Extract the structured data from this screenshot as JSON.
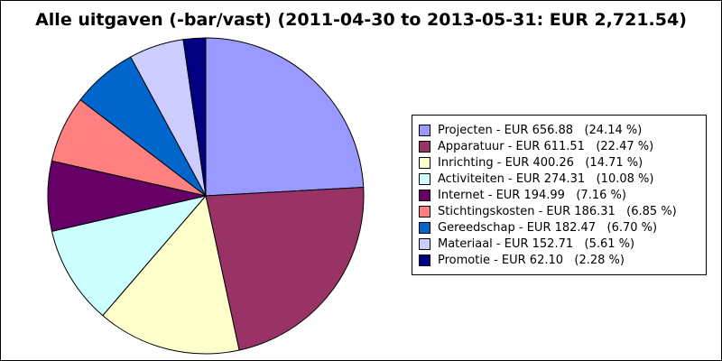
{
  "chart_data": {
    "type": "pie",
    "title": "Alle uitgaven (-bar/vast) (2011-04-30 to 2013-05-31: EUR 2,721.54)",
    "total": 2721.54,
    "currency": "EUR",
    "slices": [
      {
        "name": "Projecten",
        "value": 656.88,
        "percent": 24.14,
        "color": "#9999ff",
        "label": "Projecten - EUR 656.88   (24.14 %)"
      },
      {
        "name": "Apparatuur",
        "value": 611.51,
        "percent": 22.47,
        "color": "#993366",
        "label": "Apparatuur - EUR 611.51   (22.47 %)"
      },
      {
        "name": "Inrichting",
        "value": 400.26,
        "percent": 14.71,
        "color": "#ffffcc",
        "label": "Inrichting - EUR 400.26   (14.71 %)"
      },
      {
        "name": "Activiteiten",
        "value": 274.31,
        "percent": 10.08,
        "color": "#ccffff",
        "label": "Activiteiten - EUR 274.31   (10.08 %)"
      },
      {
        "name": "Internet",
        "value": 194.99,
        "percent": 7.16,
        "color": "#660066",
        "label": "Internet - EUR 194.99   (7.16 %)"
      },
      {
        "name": "Stichtingskosten",
        "value": 186.31,
        "percent": 6.85,
        "color": "#ff8080",
        "label": "Stichtingskosten - EUR 186.31   (6.85 %)"
      },
      {
        "name": "Gereedschap",
        "value": 182.47,
        "percent": 6.7,
        "color": "#0066cc",
        "label": "Gereedschap - EUR 182.47   (6.70 %)"
      },
      {
        "name": "Materiaal",
        "value": 152.71,
        "percent": 5.61,
        "color": "#ccccff",
        "label": "Materiaal - EUR 152.71   (5.61 %)"
      },
      {
        "name": "Promotie",
        "value": 62.1,
        "percent": 2.28,
        "color": "#000080",
        "label": "Promotie - EUR 62.10   (2.28 %)"
      }
    ],
    "start_angle": "top",
    "direction": "clockwise",
    "legend_position": "right"
  }
}
